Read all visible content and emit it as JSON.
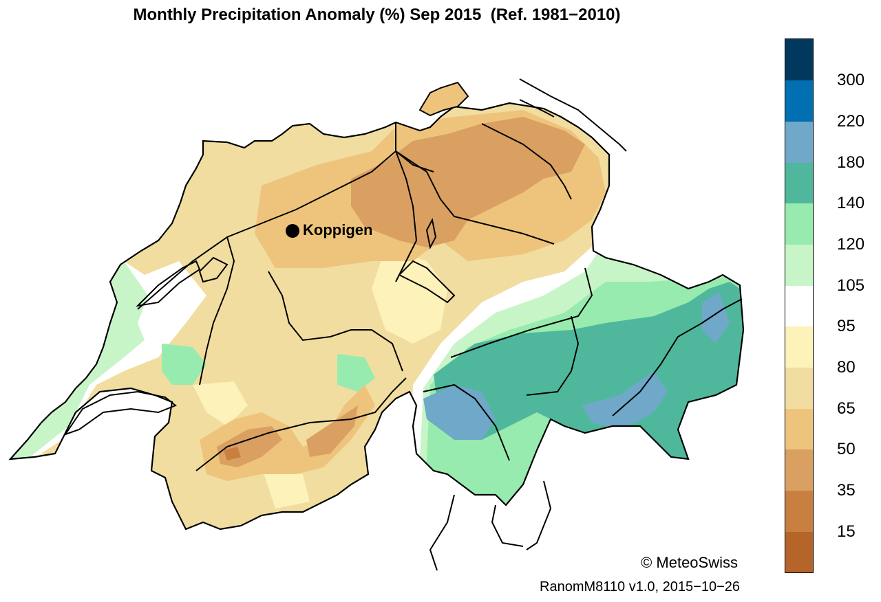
{
  "title": "Monthly Precipitation Anomaly (%) Sep 2015  (Ref. 1981−2010)",
  "station": {
    "name": "Koppigen",
    "marker": "filled-circle"
  },
  "legend": {
    "bins": [
      {
        "color": "#b5652a"
      },
      {
        "color": "#c97f3f"
      },
      {
        "color": "#d9a062"
      },
      {
        "color": "#eec47c"
      },
      {
        "color": "#f1dda0"
      },
      {
        "color": "#fdf2b9"
      },
      {
        "color": "#ffffff"
      },
      {
        "color": "#c8f5c8"
      },
      {
        "color": "#98ebae"
      },
      {
        "color": "#4fb89c"
      },
      {
        "color": "#6fa8c8"
      },
      {
        "color": "#0070b3"
      },
      {
        "color": "#00395d"
      }
    ],
    "labels": [
      "15",
      "35",
      "50",
      "65",
      "80",
      "95",
      "105",
      "120",
      "140",
      "180",
      "220",
      "300"
    ]
  },
  "credit": "© MeteoSwiss",
  "version": "RanomM8110 v1.0, 2015−10−26"
}
